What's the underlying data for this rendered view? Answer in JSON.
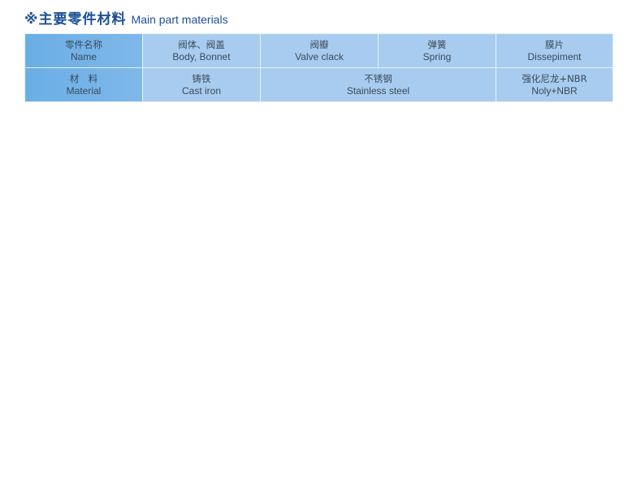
{
  "title": {
    "cn": "※主要零件材料",
    "en": "Main part materials"
  },
  "table": {
    "header_row": [
      {
        "cn": "零件名称",
        "en": "Name"
      },
      {
        "cn": "阀体、阀盖",
        "en": "Body, Bonnet"
      },
      {
        "cn": "阀瓣",
        "en": "Valve clack"
      },
      {
        "cn": "弹簧",
        "en": "Spring"
      },
      {
        "cn": "膜片",
        "en": "Dissepiment"
      }
    ],
    "material_row": [
      {
        "cn": "材　料",
        "en": "Material"
      },
      {
        "cn": "铸铁",
        "en": "Cast iron"
      },
      {
        "cn": "不锈钢",
        "en": "Stainless steel"
      },
      {
        "cn": "强化尼龙+NBR",
        "en": "Noly+NBR"
      }
    ]
  },
  "colors": {
    "title": "#1d4f98",
    "header_cell": "#6aaee6",
    "cell": "#a8ccef"
  }
}
